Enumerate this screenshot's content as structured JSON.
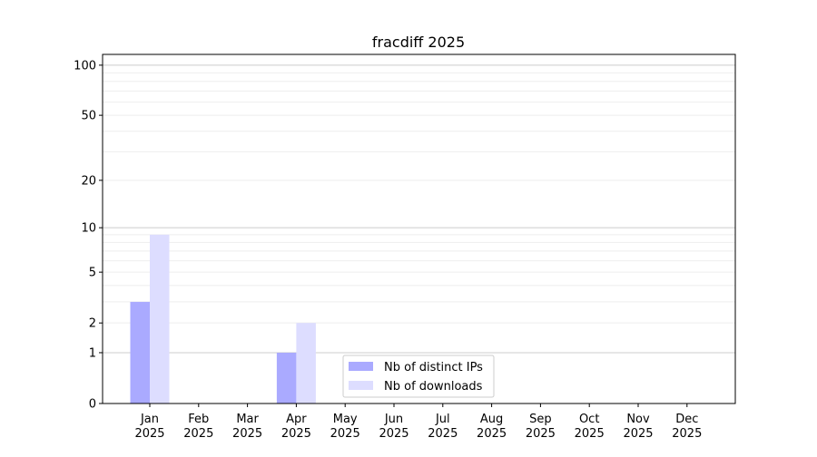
{
  "chart_data": {
    "type": "bar",
    "title": "fracdiff 2025",
    "xlabel": "",
    "ylabel": "",
    "yscale": "log(1+y)",
    "ylim": [
      0,
      116
    ],
    "grid": "horizontal major and minor",
    "legend_position": "lower-center",
    "categories": [
      "Jan\n2025",
      "Feb\n2025",
      "Mar\n2025",
      "Apr\n2025",
      "May\n2025",
      "Jun\n2025",
      "Jul\n2025",
      "Aug\n2025",
      "Sep\n2025",
      "Oct\n2025",
      "Nov\n2025",
      "Dec\n2025"
    ],
    "month_labels": [
      "Jan",
      "Feb",
      "Mar",
      "Apr",
      "May",
      "Jun",
      "Jul",
      "Aug",
      "Sep",
      "Oct",
      "Nov",
      "Dec"
    ],
    "year_label": "2025",
    "yticks": [
      0,
      1,
      2,
      5,
      10,
      20,
      50,
      100
    ],
    "ytick_labels": [
      "0",
      "1",
      "2",
      "5",
      "10",
      "20",
      "50",
      "100"
    ],
    "series": [
      {
        "name": "Nb of distinct IPs",
        "color": "#aaaaff",
        "values": [
          3,
          0,
          0,
          1,
          0,
          0,
          0,
          0,
          0,
          0,
          0,
          0
        ]
      },
      {
        "name": "Nb of downloads",
        "color": "#ddddff",
        "values": [
          9,
          0,
          0,
          2,
          0,
          0,
          0,
          0,
          0,
          0,
          0,
          0
        ]
      }
    ]
  }
}
